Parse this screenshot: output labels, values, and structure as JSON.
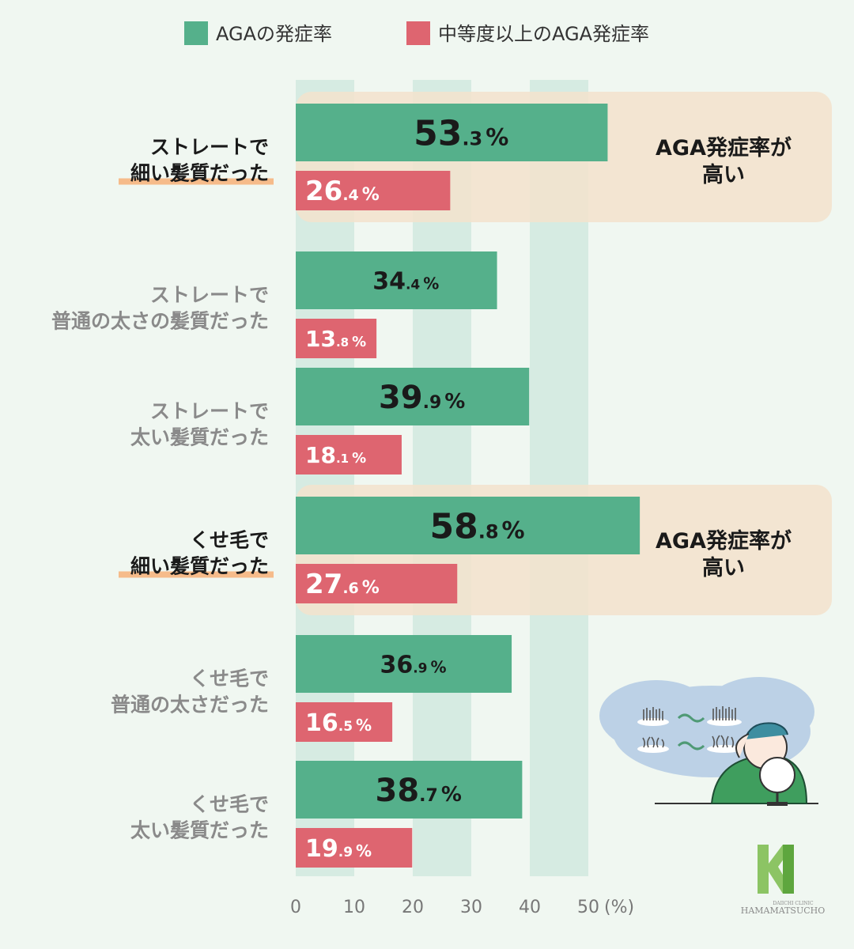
{
  "chart_data": {
    "type": "bar",
    "orientation": "horizontal",
    "legend_position": "top",
    "grid": "alternating vertical bands",
    "xlim": [
      0,
      50
    ],
    "x_unit": "(%)",
    "x_ticks": [
      "0",
      "10",
      "20",
      "30",
      "40",
      "50"
    ],
    "series": [
      {
        "name": "AGAの発症率",
        "color": "#55b08b"
      },
      {
        "name": "中等度以上のAGA発症率",
        "color": "#de6570"
      }
    ],
    "categories": [
      {
        "lines": [
          "ストレートで",
          "細い髪質だった"
        ],
        "highlight": true,
        "values": [
          53.3,
          26.4
        ],
        "labels": [
          {
            "int": "53",
            "dec": ".3",
            "pct": "%"
          },
          {
            "int": "26",
            "dec": ".4",
            "pct": "%"
          }
        ]
      },
      {
        "lines": [
          "ストレートで",
          "普通の太さの髪質だった"
        ],
        "highlight": false,
        "values": [
          34.4,
          13.8
        ],
        "labels": [
          {
            "int": "34",
            "dec": ".4",
            "pct": "%"
          },
          {
            "int": "13",
            "dec": ".8",
            "pct": "%"
          }
        ]
      },
      {
        "lines": [
          "ストレートで",
          "太い髪質だった"
        ],
        "highlight": false,
        "values": [
          39.9,
          18.1
        ],
        "labels": [
          {
            "int": "39",
            "dec": ".9",
            "pct": "%"
          },
          {
            "int": "18",
            "dec": ".1",
            "pct": "%"
          }
        ]
      },
      {
        "lines": [
          "くせ毛で",
          "細い髪質だった"
        ],
        "highlight": true,
        "values": [
          58.8,
          27.6
        ],
        "labels": [
          {
            "int": "58",
            "dec": ".8",
            "pct": "%"
          },
          {
            "int": "27",
            "dec": ".6",
            "pct": "%"
          }
        ]
      },
      {
        "lines": [
          "くせ毛で",
          "普通の太さだった"
        ],
        "highlight": false,
        "values": [
          36.9,
          16.5
        ],
        "labels": [
          {
            "int": "36",
            "dec": ".9",
            "pct": "%"
          },
          {
            "int": "16",
            "dec": ".5",
            "pct": "%"
          }
        ]
      },
      {
        "lines": [
          "くせ毛で",
          "太い髪質だった"
        ],
        "highlight": false,
        "values": [
          38.7,
          19.9
        ],
        "labels": [
          {
            "int": "38",
            "dec": ".7",
            "pct": "%"
          },
          {
            "int": "19",
            "dec": ".9",
            "pct": "%"
          }
        ]
      }
    ],
    "annotations": [
      {
        "category_index": 0,
        "lines": [
          "AGA発症率が",
          "高い"
        ]
      },
      {
        "category_index": 3,
        "lines": [
          "AGA発症率が",
          "高い"
        ]
      }
    ]
  },
  "logo": {
    "mark": "H",
    "small": "DAIICHI CLINIC",
    "name": "HAMAMATSUCHO"
  },
  "colors": {
    "background": "#f0f7f1",
    "band": "#d6ebe2",
    "highlight": "#f3e3cd",
    "underline": "#f6bb8a"
  }
}
